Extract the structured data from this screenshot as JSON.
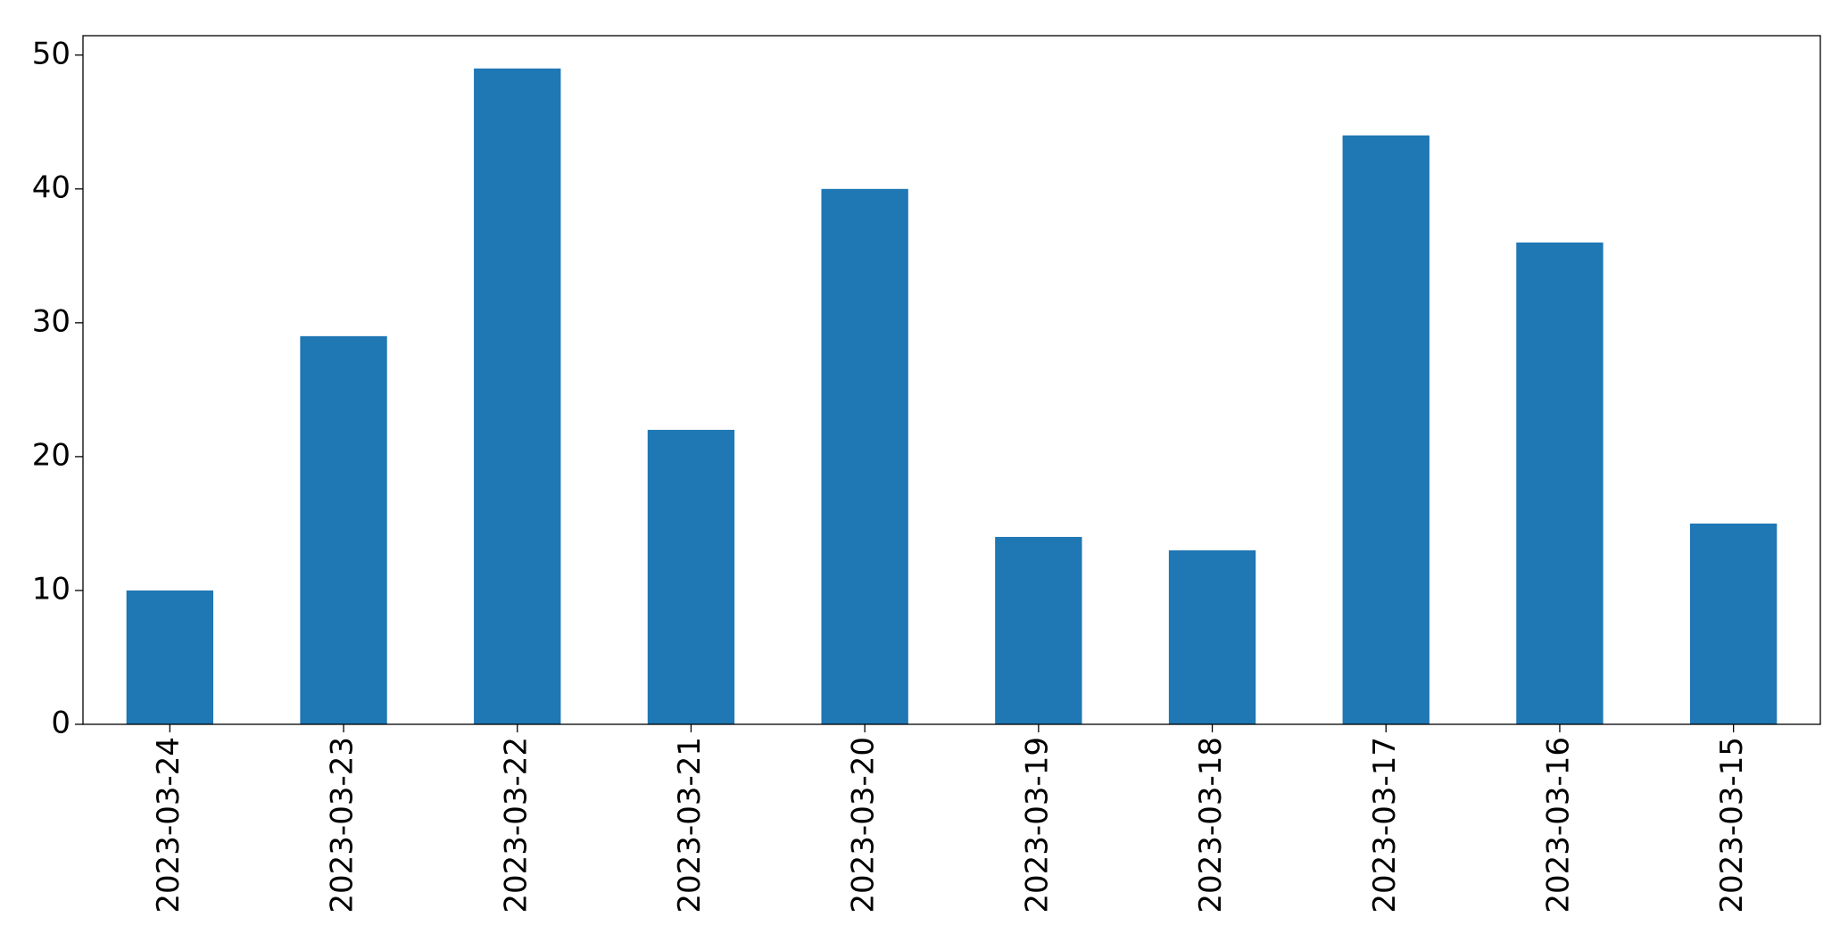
{
  "chart_data": {
    "type": "bar",
    "categories": [
      "2023-03-24",
      "2023-03-23",
      "2023-03-22",
      "2023-03-21",
      "2023-03-20",
      "2023-03-19",
      "2023-03-18",
      "2023-03-17",
      "2023-03-16",
      "2023-03-15"
    ],
    "values": [
      10,
      29,
      49,
      22,
      40,
      14,
      13,
      44,
      36,
      15
    ],
    "color": "#1f77b4",
    "ylim": [
      0,
      51.45
    ],
    "yticks": [
      0,
      10,
      20,
      30,
      40,
      50
    ],
    "grid": false
  }
}
